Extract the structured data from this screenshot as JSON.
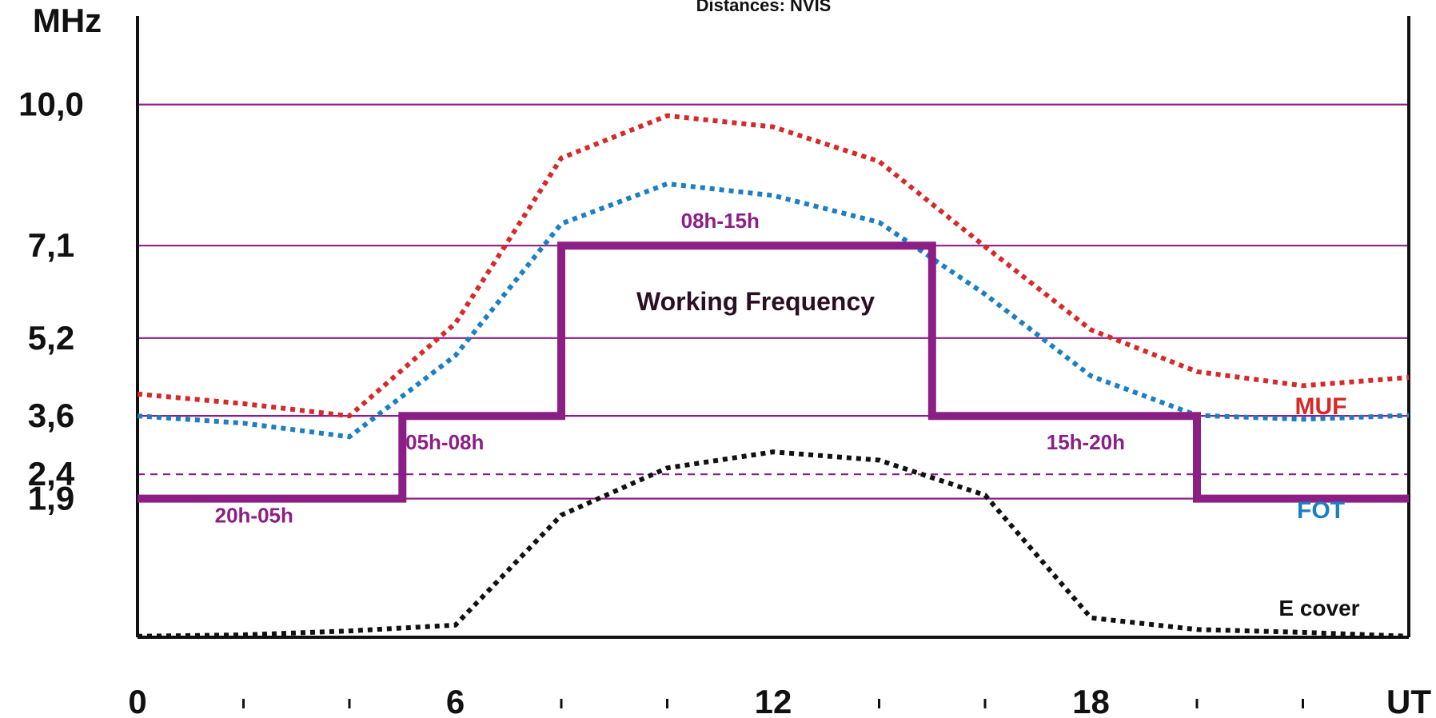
{
  "chart_data": {
    "type": "line",
    "title": "Distances: NVIS",
    "ylabel": "MHz",
    "xlabel": "UT",
    "xlim": [
      0,
      24
    ],
    "ylim": [
      -0.95,
      11.82
    ],
    "x_ticks": [
      0,
      6,
      12,
      18
    ],
    "x_tick_labels": [
      "0",
      "6",
      "12",
      "18"
    ],
    "x_minor_ticks": [
      2,
      4,
      8,
      10,
      14,
      16,
      20,
      22
    ],
    "y_ticks": [
      {
        "value": 10.0,
        "label": "10,0",
        "style": "solid"
      },
      {
        "value": 7.1,
        "label": "7,1",
        "style": "solid"
      },
      {
        "value": 5.2,
        "label": "5,2",
        "style": "solid"
      },
      {
        "value": 3.6,
        "label": "3,6",
        "style": "solid"
      },
      {
        "value": 2.4,
        "label": "2,4",
        "style": "dashed"
      },
      {
        "value": 1.9,
        "label": "1,9",
        "style": "solid"
      }
    ],
    "grid": true,
    "series": [
      {
        "name": "MUF",
        "color": "#d62a2a",
        "style": "dotted",
        "points": [
          [
            0,
            4.05
          ],
          [
            2,
            3.85
          ],
          [
            4,
            3.6
          ],
          [
            6,
            5.5
          ],
          [
            8,
            8.9
          ],
          [
            10,
            9.77
          ],
          [
            12,
            9.54
          ],
          [
            14,
            8.83
          ],
          [
            16,
            7.08
          ],
          [
            18,
            5.37
          ],
          [
            20,
            4.51
          ],
          [
            22,
            4.22
          ],
          [
            24,
            4.39
          ]
        ]
      },
      {
        "name": "FOT",
        "color": "#1c7fc2",
        "style": "dotted",
        "points": [
          [
            0,
            3.6
          ],
          [
            2,
            3.45
          ],
          [
            4,
            3.17
          ],
          [
            6,
            4.84
          ],
          [
            8,
            7.55
          ],
          [
            10,
            8.37
          ],
          [
            12,
            8.13
          ],
          [
            14,
            7.58
          ],
          [
            16,
            6.1
          ],
          [
            18,
            4.42
          ],
          [
            20,
            3.61
          ],
          [
            22,
            3.53
          ],
          [
            24,
            3.61
          ]
        ]
      },
      {
        "name": "E cover",
        "color": "#111111",
        "style": "dotted",
        "points": [
          [
            0,
            -0.93
          ],
          [
            2,
            -0.9
          ],
          [
            4,
            -0.82
          ],
          [
            6,
            -0.7
          ],
          [
            8,
            1.56
          ],
          [
            10,
            2.53
          ],
          [
            12,
            2.86
          ],
          [
            14,
            2.69
          ],
          [
            16,
            1.97
          ],
          [
            18,
            -0.55
          ],
          [
            20,
            -0.79
          ],
          [
            22,
            -0.85
          ],
          [
            24,
            -0.93
          ]
        ]
      },
      {
        "name": "Working Frequency",
        "color": "#8b1f86",
        "style": "step",
        "segments": [
          {
            "from": 0,
            "to": 5,
            "value": 1.9,
            "label": "20h-05h"
          },
          {
            "from": 5,
            "to": 8,
            "value": 3.6,
            "label": "05h-08h"
          },
          {
            "from": 8,
            "to": 15,
            "value": 7.1,
            "label": "08h-15h"
          },
          {
            "from": 15,
            "to": 20,
            "value": 3.6,
            "label": "15h-20h"
          },
          {
            "from": 20,
            "to": 24,
            "value": 1.9,
            "label": ""
          }
        ]
      }
    ],
    "annotations": {
      "working_frequency": "Working Frequency",
      "muf": "MUF",
      "fot": "FOT",
      "e_cover": "E cover"
    }
  },
  "colors": {
    "grid": "#8b1f86",
    "axis": "#111111",
    "label_purple": "#8b1f86",
    "label_dark": "#2a0f22"
  }
}
